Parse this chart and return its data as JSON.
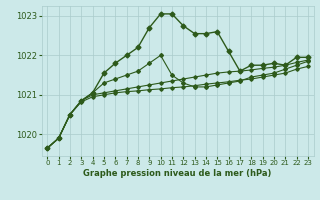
{
  "title": "Graphe pression niveau de la mer (hPa)",
  "bg_color": "#cce9e9",
  "grid_color": "#aacccc",
  "line_color": "#2d5a1b",
  "xlim": [
    -0.5,
    23.5
  ],
  "ylim": [
    1019.45,
    1023.25
  ],
  "yticks": [
    1020,
    1021,
    1022,
    1023
  ],
  "xticks": [
    0,
    1,
    2,
    3,
    4,
    5,
    6,
    7,
    8,
    9,
    10,
    11,
    12,
    13,
    14,
    15,
    16,
    17,
    18,
    19,
    20,
    21,
    22,
    23
  ],
  "series": [
    [
      1019.65,
      1019.9,
      1020.5,
      1020.85,
      1021.05,
      1021.55,
      1021.8,
      1022.0,
      1022.2,
      1022.7,
      1023.05,
      1023.05,
      1022.75,
      1022.55,
      1022.55,
      1022.6,
      1022.1,
      1021.6,
      1021.75,
      1021.75,
      1021.8,
      1021.75,
      1021.95,
      1021.95
    ],
    [
      1019.65,
      1019.9,
      1020.5,
      1020.85,
      1021.05,
      1021.3,
      1021.4,
      1021.5,
      1021.6,
      1021.8,
      1022.0,
      1021.5,
      1021.3,
      1021.2,
      1021.2,
      1021.25,
      1021.3,
      1021.35,
      1021.45,
      1021.5,
      1021.55,
      1021.65,
      1021.75,
      1021.85
    ],
    [
      1019.65,
      1019.9,
      1020.5,
      1020.85,
      1021.0,
      1021.05,
      1021.1,
      1021.15,
      1021.2,
      1021.25,
      1021.3,
      1021.35,
      1021.4,
      1021.45,
      1021.5,
      1021.55,
      1021.58,
      1021.6,
      1021.63,
      1021.67,
      1021.7,
      1021.75,
      1021.82,
      1021.88
    ],
    [
      1019.65,
      1019.9,
      1020.5,
      1020.82,
      1020.95,
      1021.0,
      1021.05,
      1021.08,
      1021.1,
      1021.13,
      1021.15,
      1021.18,
      1021.2,
      1021.23,
      1021.27,
      1021.3,
      1021.33,
      1021.37,
      1021.4,
      1021.45,
      1021.5,
      1021.55,
      1021.65,
      1021.72
    ]
  ]
}
